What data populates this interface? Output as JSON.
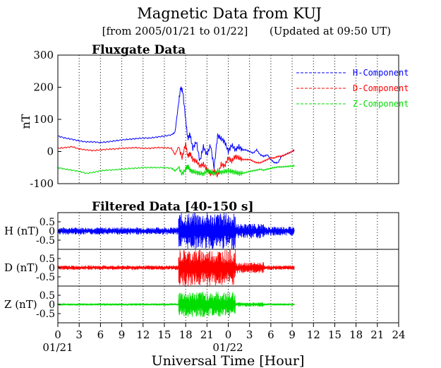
{
  "title": "Magnetic Data from KUJ",
  "subtitle": "[from 2005/01/21 to 01/22]",
  "updated": "(Updated at 09:50 UT)",
  "top_panel_title": "Fluxgate Data",
  "bottom_panel_title": "Filtered Data [40-150 s]",
  "xlabel": "Universal Time [Hour]",
  "date_labels": [
    "01/21",
    "01/22"
  ],
  "colors": {
    "h": "#0000ff",
    "d": "#ff0000",
    "z": "#00dd00",
    "axis": "#000000"
  },
  "chart_data": [
    {
      "type": "line",
      "title": "Fluxgate Data",
      "xlabel": "Universal Time [Hour]",
      "ylabel": "nT",
      "xlim": [
        0,
        48
      ],
      "ylim": [
        -100,
        300
      ],
      "yticks": [
        "300",
        "200",
        "100",
        "0",
        "-100"
      ],
      "xticks": [
        "0",
        "3",
        "6",
        "9",
        "12",
        "15",
        "18",
        "21",
        "0",
        "3",
        "6",
        "9",
        "12",
        "15",
        "18",
        "21",
        "24"
      ],
      "legend": "top-right",
      "grid": "vertical dotted every 3 hours",
      "series": [
        {
          "name": "H-Component",
          "x": [
            0,
            1,
            2,
            3,
            4,
            5,
            6,
            7,
            8,
            9,
            10,
            11,
            12,
            13,
            14,
            15,
            16,
            16.5,
            17,
            17.3,
            17.6,
            18,
            18.3,
            18.6,
            19,
            19.5,
            20,
            20.5,
            21,
            21.5,
            22,
            22.5,
            23,
            23.5,
            24,
            24.5,
            25,
            25.5,
            26,
            26.5,
            27,
            27.5,
            28,
            28.5,
            29,
            29.5,
            30,
            30.5,
            31,
            31.5,
            32,
            32.5,
            33,
            33.3
          ],
          "values": [
            48,
            42,
            38,
            33,
            30,
            30,
            28,
            30,
            33,
            36,
            38,
            40,
            42,
            42,
            45,
            48,
            52,
            60,
            150,
            200,
            185,
            100,
            40,
            55,
            10,
            30,
            -30,
            15,
            -10,
            20,
            -50,
            50,
            40,
            30,
            0,
            20,
            5,
            15,
            5,
            5,
            0,
            -5,
            5,
            -10,
            -15,
            -10,
            -25,
            -35,
            -35,
            -15,
            -10,
            -5,
            0,
            5
          ]
        },
        {
          "name": "D-Component",
          "x": [
            0,
            1,
            2,
            3,
            4,
            5,
            6,
            7,
            8,
            9,
            10,
            11,
            12,
            13,
            14,
            15,
            16,
            16.5,
            17,
            17.5,
            18,
            18.3,
            18.6,
            19,
            19.5,
            20,
            20.5,
            21,
            21.5,
            22,
            22.5,
            23,
            23.5,
            24,
            24.5,
            25,
            25.5,
            26,
            26.5,
            27,
            27.5,
            28,
            28.5,
            29,
            29.5,
            30,
            30.5,
            31,
            31.5,
            32,
            32.5,
            33,
            33.3
          ],
          "values": [
            10,
            12,
            15,
            8,
            5,
            3,
            5,
            7,
            8,
            10,
            11,
            12,
            10,
            10,
            12,
            12,
            10,
            -10,
            15,
            -20,
            25,
            -15,
            -5,
            -25,
            -30,
            -45,
            -40,
            -55,
            -70,
            -60,
            -75,
            -40,
            -45,
            -20,
            -30,
            -15,
            -20,
            -25,
            -25,
            -25,
            -30,
            -35,
            -35,
            -30,
            -25,
            -20,
            -20,
            -15,
            -15,
            -10,
            -5,
            0,
            5
          ]
        },
        {
          "name": "Z-Component",
          "x": [
            0,
            1,
            2,
            3,
            4,
            5,
            6,
            7,
            8,
            9,
            10,
            11,
            12,
            13,
            14,
            15,
            16,
            16.5,
            17,
            17.5,
            18,
            18.3,
            18.6,
            19,
            19.5,
            20,
            20.5,
            21,
            21.5,
            22,
            22.5,
            23,
            23.5,
            24,
            24.5,
            25,
            25.5,
            26,
            26.5,
            27,
            27.5,
            28,
            28.5,
            29,
            29.5,
            30,
            30.5,
            31,
            31.5,
            32,
            32.5,
            33,
            33.3
          ],
          "values": [
            -50,
            -55,
            -58,
            -62,
            -68,
            -65,
            -60,
            -58,
            -57,
            -55,
            -53,
            -52,
            -50,
            -50,
            -50,
            -50,
            -52,
            -60,
            -50,
            -70,
            -55,
            -45,
            -58,
            -62,
            -65,
            -68,
            -70,
            -60,
            -62,
            -70,
            -60,
            -65,
            -62,
            -60,
            -62,
            -65,
            -68,
            -68,
            -65,
            -62,
            -60,
            -58,
            -55,
            -58,
            -55,
            -52,
            -50,
            -48,
            -48,
            -47,
            -46,
            -45,
            -44
          ]
        }
      ]
    },
    {
      "type": "line",
      "title": "Filtered Data [40-150 s]",
      "xlim": [
        0,
        48
      ],
      "panels": [
        {
          "name": "H",
          "ylabel": "H (nT)",
          "ylim": [
            -1,
            1
          ],
          "yticks": [
            "0.5",
            "0",
            "-0.5"
          ],
          "segments": [
            {
              "x": [
                0,
                17
              ],
              "amplitude": 0.2
            },
            {
              "x": [
                17,
                25
              ],
              "amplitude": 1.0
            },
            {
              "x": [
                25,
                29
              ],
              "amplitude": 0.4
            },
            {
              "x": [
                29,
                33.3
              ],
              "amplitude": 0.25
            }
          ]
        },
        {
          "name": "D",
          "ylabel": "D (nT)",
          "ylim": [
            -1,
            1
          ],
          "yticks": [
            "0.5",
            "0",
            "-0.5"
          ],
          "segments": [
            {
              "x": [
                0,
                17
              ],
              "amplitude": 0.12
            },
            {
              "x": [
                17,
                25
              ],
              "amplitude": 1.0
            },
            {
              "x": [
                25,
                29
              ],
              "amplitude": 0.3
            },
            {
              "x": [
                29,
                33.3
              ],
              "amplitude": 0.12
            }
          ]
        },
        {
          "name": "Z",
          "ylabel": "Z (nT)",
          "ylim": [
            -1,
            1
          ],
          "yticks": [
            "0.5",
            "0",
            "-0.5"
          ],
          "segments": [
            {
              "x": [
                0,
                17
              ],
              "amplitude": 0.06
            },
            {
              "x": [
                17,
                25
              ],
              "amplitude": 0.7
            },
            {
              "x": [
                25,
                29
              ],
              "amplitude": 0.12
            },
            {
              "x": [
                29,
                33.3
              ],
              "amplitude": 0.06
            }
          ]
        }
      ]
    }
  ]
}
